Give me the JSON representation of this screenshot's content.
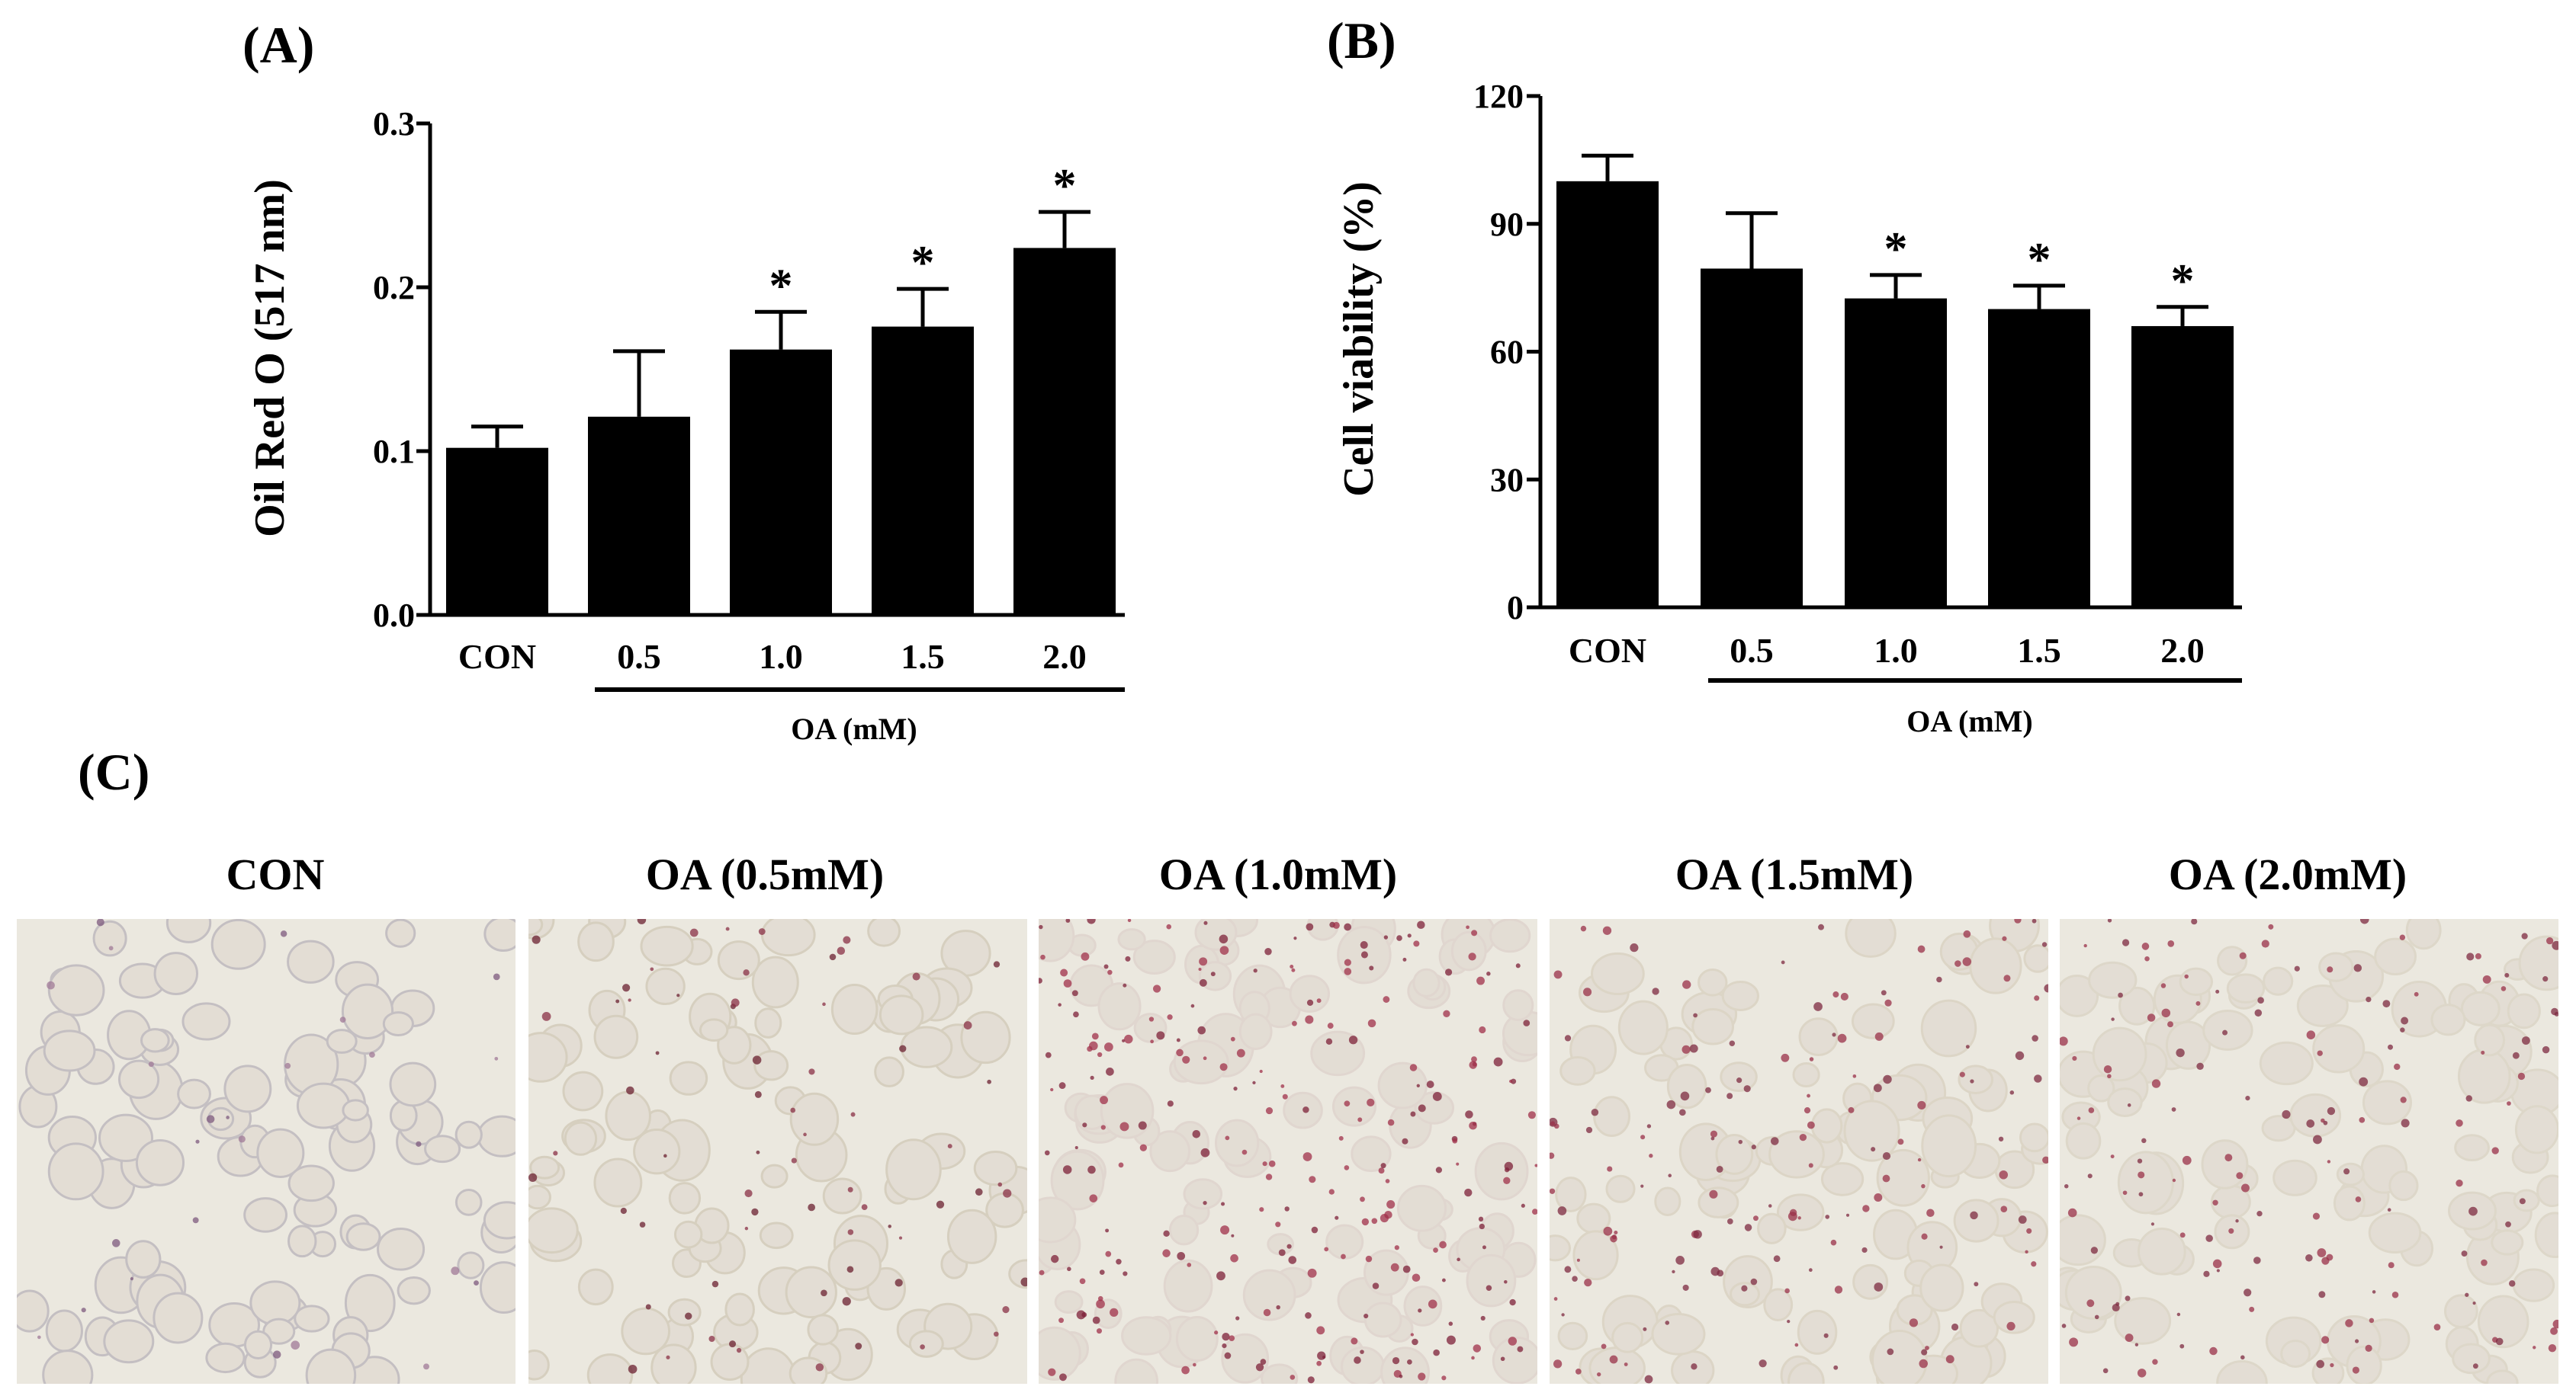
{
  "panel_labels": {
    "a": "(A)",
    "b": "(B)",
    "c": "(C)"
  },
  "significance_marker": "*",
  "chart_data": [
    {
      "type": "bar",
      "panel": "(A)",
      "ylabel": "Oil Red O (517 nm)",
      "xlabel": "OA (mM)",
      "categories": [
        "CON",
        "0.5",
        "1.0",
        "1.5",
        "2.0"
      ],
      "values": [
        0.102,
        0.121,
        0.162,
        0.176,
        0.224
      ],
      "errors": [
        0.013,
        0.04,
        0.023,
        0.023,
        0.022
      ],
      "significant": [
        false,
        false,
        true,
        true,
        true
      ],
      "ylim": [
        0,
        0.3
      ],
      "yticks": [
        "0.0",
        "0.1",
        "0.2",
        "0.3"
      ],
      "ytick_values": [
        0,
        0.1,
        0.2,
        0.3
      ],
      "bar_color": "#000000"
    },
    {
      "type": "bar",
      "panel": "(B)",
      "ylabel": "Cell viability (%)",
      "xlabel": "OA (mM)",
      "categories": [
        "CON",
        "0.5",
        "1.0",
        "1.5",
        "2.0"
      ],
      "values": [
        100,
        79.5,
        72.5,
        70,
        66
      ],
      "errors": [
        6,
        13,
        5.5,
        5.5,
        4.5
      ],
      "significant": [
        false,
        false,
        true,
        true,
        true
      ],
      "ylim": [
        0,
        120
      ],
      "yticks": [
        "0",
        "30",
        "60",
        "90",
        "120"
      ],
      "ytick_values": [
        0,
        30,
        60,
        90,
        120
      ],
      "bar_color": "#000000"
    }
  ],
  "micrographs": [
    {
      "label": "CON",
      "stain": "sparse",
      "tint": "#c4bfc2"
    },
    {
      "label": "OA (0.5mM)",
      "stain": "light",
      "tint": "#d6cfbf"
    },
    {
      "label": "OA (1.0mM)",
      "stain": "heavy",
      "tint": "#e0d6cf"
    },
    {
      "label": "OA (1.5mM)",
      "stain": "medium",
      "tint": "#dcd5c6"
    },
    {
      "label": "OA (2.0mM)",
      "stain": "medium",
      "tint": "#ddd7c9"
    }
  ]
}
